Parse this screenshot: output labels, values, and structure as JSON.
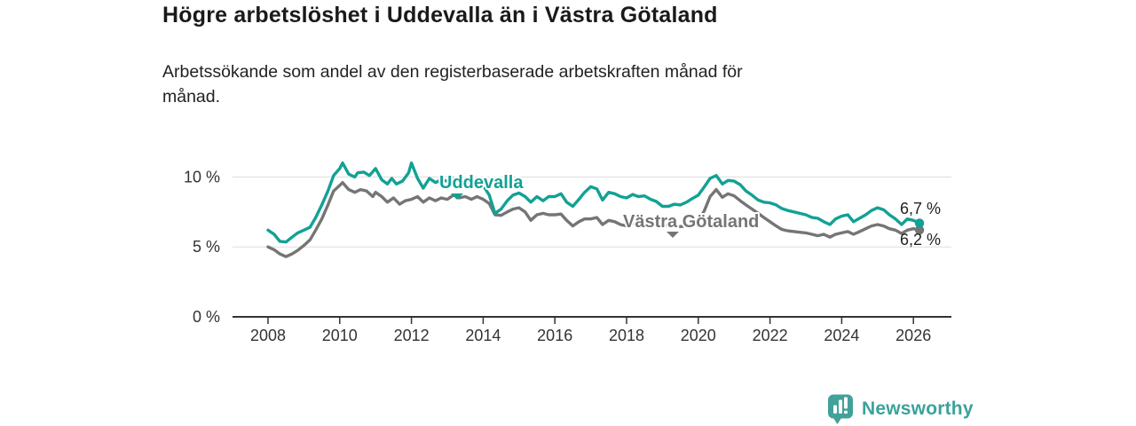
{
  "header": {
    "title": "Högre arbetslöshet i Uddevalla än i Västra Götaland",
    "subtitle": "Arbetssökande som andel av den registerbaserade arbetskraften månad för månad.",
    "subtitle_lines": [
      "Arbetssökande som andel av den registerbaserade arbetskraften månad för",
      "månad."
    ]
  },
  "colors": {
    "uddevalla": "#12a195",
    "vastra_gotaland": "#757575",
    "grid": "#dddddd",
    "axis": "#333333",
    "tick_label": "#333333",
    "value_label": "#222222",
    "brand": "#3aa29b",
    "logo_bg": "#43a09a"
  },
  "footer": {
    "brand_name": "Newsworthy"
  },
  "chart_data": {
    "type": "line",
    "title": "Högre arbetslöshet i Uddevalla än i Västra Götaland",
    "subtitle": "Arbetssökande som andel av den registerbaserade arbetskraften månad för månad.",
    "xlabel": "",
    "ylabel": "",
    "unit": "%",
    "xlim": [
      2007.0,
      2027.1
    ],
    "ylim": [
      0,
      12.7
    ],
    "grid": "horizontal",
    "legend": "inline-labels",
    "x_ticks": [
      {
        "value": 2008,
        "label": "2008"
      },
      {
        "value": 2010,
        "label": "2010"
      },
      {
        "value": 2012,
        "label": "2012"
      },
      {
        "value": 2014,
        "label": "2014"
      },
      {
        "value": 2016,
        "label": "2016"
      },
      {
        "value": 2018,
        "label": "2018"
      },
      {
        "value": 2020,
        "label": "2020"
      },
      {
        "value": 2022,
        "label": "2022"
      },
      {
        "value": 2024,
        "label": "2024"
      },
      {
        "value": 2026,
        "label": "2026"
      }
    ],
    "y_ticks": [
      {
        "value": 0,
        "label": "0 %"
      },
      {
        "value": 5,
        "label": "5 %"
      },
      {
        "value": 10,
        "label": "10 %"
      }
    ],
    "series": [
      {
        "name": "Uddevalla",
        "color": "#12a195",
        "end_value": 6.7,
        "end_label": "6,7 %",
        "points": [
          [
            2008.0,
            6.2
          ],
          [
            2008.17,
            5.9
          ],
          [
            2008.33,
            5.4
          ],
          [
            2008.5,
            5.35
          ],
          [
            2008.67,
            5.7
          ],
          [
            2008.83,
            6.0
          ],
          [
            2009.0,
            6.2
          ],
          [
            2009.17,
            6.4
          ],
          [
            2009.33,
            7.1
          ],
          [
            2009.5,
            8.0
          ],
          [
            2009.67,
            9.0
          ],
          [
            2009.83,
            10.1
          ],
          [
            2010.0,
            10.6
          ],
          [
            2010.08,
            11.0
          ],
          [
            2010.25,
            10.2
          ],
          [
            2010.42,
            10.0
          ],
          [
            2010.5,
            10.3
          ],
          [
            2010.67,
            10.35
          ],
          [
            2010.83,
            10.1
          ],
          [
            2011.0,
            10.6
          ],
          [
            2011.17,
            9.8
          ],
          [
            2011.33,
            9.5
          ],
          [
            2011.45,
            9.9
          ],
          [
            2011.58,
            9.5
          ],
          [
            2011.75,
            9.7
          ],
          [
            2011.92,
            10.3
          ],
          [
            2012.0,
            11.0
          ],
          [
            2012.17,
            9.9
          ],
          [
            2012.33,
            9.2
          ],
          [
            2012.5,
            9.9
          ],
          [
            2012.67,
            9.6
          ],
          [
            2012.83,
            9.8
          ],
          [
            2013.0,
            9.7
          ],
          [
            2013.17,
            9.9
          ],
          [
            2013.33,
            9.7
          ],
          [
            2013.5,
            9.8
          ],
          [
            2013.67,
            9.5
          ],
          [
            2013.83,
            9.6
          ],
          [
            2014.0,
            9.4
          ],
          [
            2014.17,
            8.7
          ],
          [
            2014.33,
            7.4
          ],
          [
            2014.5,
            7.7
          ],
          [
            2014.67,
            8.3
          ],
          [
            2014.83,
            8.7
          ],
          [
            2015.0,
            8.85
          ],
          [
            2015.17,
            8.6
          ],
          [
            2015.33,
            8.2
          ],
          [
            2015.5,
            8.6
          ],
          [
            2015.67,
            8.3
          ],
          [
            2015.83,
            8.6
          ],
          [
            2016.0,
            8.6
          ],
          [
            2016.17,
            8.8
          ],
          [
            2016.33,
            8.2
          ],
          [
            2016.5,
            7.9
          ],
          [
            2016.67,
            8.4
          ],
          [
            2016.83,
            8.9
          ],
          [
            2017.0,
            9.3
          ],
          [
            2017.17,
            9.15
          ],
          [
            2017.33,
            8.35
          ],
          [
            2017.5,
            8.9
          ],
          [
            2017.67,
            8.8
          ],
          [
            2017.83,
            8.6
          ],
          [
            2018.0,
            8.5
          ],
          [
            2018.17,
            8.75
          ],
          [
            2018.33,
            8.6
          ],
          [
            2018.5,
            8.65
          ],
          [
            2018.67,
            8.4
          ],
          [
            2018.83,
            8.25
          ],
          [
            2019.0,
            7.9
          ],
          [
            2019.17,
            7.9
          ],
          [
            2019.33,
            8.05
          ],
          [
            2019.5,
            8.0
          ],
          [
            2019.67,
            8.2
          ],
          [
            2019.83,
            8.45
          ],
          [
            2020.0,
            8.7
          ],
          [
            2020.17,
            9.3
          ],
          [
            2020.33,
            9.9
          ],
          [
            2020.5,
            10.1
          ],
          [
            2020.67,
            9.5
          ],
          [
            2020.83,
            9.75
          ],
          [
            2021.0,
            9.7
          ],
          [
            2021.17,
            9.45
          ],
          [
            2021.33,
            9.0
          ],
          [
            2021.5,
            8.7
          ],
          [
            2021.67,
            8.35
          ],
          [
            2021.83,
            8.2
          ],
          [
            2022.0,
            8.15
          ],
          [
            2022.17,
            8.0
          ],
          [
            2022.33,
            7.75
          ],
          [
            2022.5,
            7.6
          ],
          [
            2022.67,
            7.5
          ],
          [
            2022.83,
            7.4
          ],
          [
            2023.0,
            7.3
          ],
          [
            2023.17,
            7.1
          ],
          [
            2023.33,
            7.05
          ],
          [
            2023.5,
            6.8
          ],
          [
            2023.67,
            6.6
          ],
          [
            2023.83,
            7.0
          ],
          [
            2024.0,
            7.2
          ],
          [
            2024.17,
            7.3
          ],
          [
            2024.33,
            6.8
          ],
          [
            2024.5,
            7.05
          ],
          [
            2024.67,
            7.3
          ],
          [
            2024.83,
            7.6
          ],
          [
            2025.0,
            7.8
          ],
          [
            2025.17,
            7.65
          ],
          [
            2025.33,
            7.3
          ],
          [
            2025.5,
            7.0
          ],
          [
            2025.67,
            6.6
          ],
          [
            2025.83,
            7.0
          ],
          [
            2026.0,
            6.9
          ],
          [
            2026.17,
            6.7
          ]
        ]
      },
      {
        "name": "Västra Götaland",
        "color": "#757575",
        "end_value": 6.2,
        "end_label": "6,2 %",
        "points": [
          [
            2008.0,
            5.0
          ],
          [
            2008.17,
            4.8
          ],
          [
            2008.33,
            4.5
          ],
          [
            2008.5,
            4.3
          ],
          [
            2008.67,
            4.5
          ],
          [
            2008.83,
            4.75
          ],
          [
            2009.0,
            5.1
          ],
          [
            2009.17,
            5.5
          ],
          [
            2009.33,
            6.2
          ],
          [
            2009.5,
            7.0
          ],
          [
            2009.67,
            8.0
          ],
          [
            2009.83,
            9.0
          ],
          [
            2010.0,
            9.4
          ],
          [
            2010.08,
            9.6
          ],
          [
            2010.25,
            9.1
          ],
          [
            2010.42,
            8.9
          ],
          [
            2010.58,
            9.1
          ],
          [
            2010.75,
            9.0
          ],
          [
            2010.92,
            8.6
          ],
          [
            2011.0,
            8.9
          ],
          [
            2011.17,
            8.6
          ],
          [
            2011.33,
            8.2
          ],
          [
            2011.5,
            8.5
          ],
          [
            2011.67,
            8.05
          ],
          [
            2011.83,
            8.3
          ],
          [
            2012.0,
            8.4
          ],
          [
            2012.17,
            8.6
          ],
          [
            2012.33,
            8.2
          ],
          [
            2012.5,
            8.5
          ],
          [
            2012.67,
            8.3
          ],
          [
            2012.83,
            8.5
          ],
          [
            2013.0,
            8.4
          ],
          [
            2013.17,
            8.7
          ],
          [
            2013.33,
            8.5
          ],
          [
            2013.5,
            8.6
          ],
          [
            2013.67,
            8.4
          ],
          [
            2013.83,
            8.6
          ],
          [
            2014.0,
            8.4
          ],
          [
            2014.17,
            8.1
          ],
          [
            2014.33,
            7.3
          ],
          [
            2014.5,
            7.25
          ],
          [
            2014.67,
            7.5
          ],
          [
            2014.83,
            7.7
          ],
          [
            2015.0,
            7.8
          ],
          [
            2015.17,
            7.5
          ],
          [
            2015.33,
            6.9
          ],
          [
            2015.5,
            7.3
          ],
          [
            2015.67,
            7.4
          ],
          [
            2015.83,
            7.3
          ],
          [
            2016.0,
            7.3
          ],
          [
            2016.17,
            7.35
          ],
          [
            2016.33,
            6.9
          ],
          [
            2016.5,
            6.5
          ],
          [
            2016.67,
            6.8
          ],
          [
            2016.83,
            7.0
          ],
          [
            2017.0,
            7.0
          ],
          [
            2017.17,
            7.1
          ],
          [
            2017.33,
            6.6
          ],
          [
            2017.5,
            6.9
          ],
          [
            2017.67,
            6.8
          ],
          [
            2017.83,
            6.6
          ],
          [
            2018.0,
            6.5
          ],
          [
            2018.17,
            6.7
          ],
          [
            2018.33,
            6.6
          ],
          [
            2018.5,
            6.55
          ],
          [
            2018.67,
            6.65
          ],
          [
            2018.83,
            6.5
          ],
          [
            2019.0,
            6.5
          ],
          [
            2019.17,
            6.6
          ],
          [
            2019.33,
            6.5
          ],
          [
            2019.5,
            6.45
          ],
          [
            2019.67,
            6.5
          ],
          [
            2019.83,
            6.6
          ],
          [
            2020.0,
            6.8
          ],
          [
            2020.17,
            7.6
          ],
          [
            2020.33,
            8.6
          ],
          [
            2020.5,
            9.1
          ],
          [
            2020.67,
            8.55
          ],
          [
            2020.83,
            8.8
          ],
          [
            2021.0,
            8.65
          ],
          [
            2021.17,
            8.3
          ],
          [
            2021.33,
            8.0
          ],
          [
            2021.5,
            7.7
          ],
          [
            2021.67,
            7.4
          ],
          [
            2021.83,
            7.1
          ],
          [
            2022.0,
            6.8
          ],
          [
            2022.17,
            6.5
          ],
          [
            2022.33,
            6.25
          ],
          [
            2022.5,
            6.15
          ],
          [
            2022.67,
            6.1
          ],
          [
            2022.83,
            6.05
          ],
          [
            2023.0,
            6.0
          ],
          [
            2023.17,
            5.9
          ],
          [
            2023.33,
            5.8
          ],
          [
            2023.5,
            5.9
          ],
          [
            2023.67,
            5.7
          ],
          [
            2023.83,
            5.9
          ],
          [
            2024.0,
            6.0
          ],
          [
            2024.17,
            6.1
          ],
          [
            2024.33,
            5.9
          ],
          [
            2024.5,
            6.1
          ],
          [
            2024.67,
            6.3
          ],
          [
            2024.83,
            6.5
          ],
          [
            2025.0,
            6.6
          ],
          [
            2025.17,
            6.5
          ],
          [
            2025.33,
            6.3
          ],
          [
            2025.5,
            6.2
          ],
          [
            2025.67,
            5.95
          ],
          [
            2025.83,
            6.2
          ],
          [
            2026.0,
            6.3
          ],
          [
            2026.17,
            6.2
          ]
        ]
      }
    ]
  }
}
